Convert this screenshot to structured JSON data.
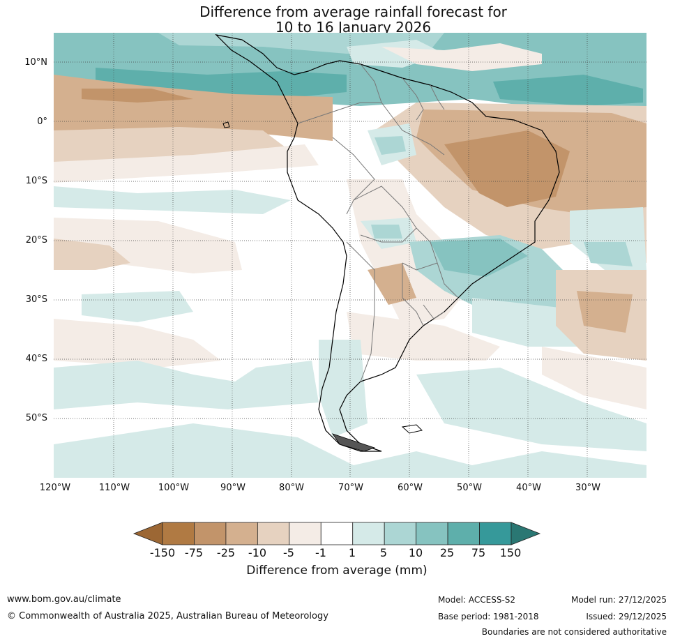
{
  "title_line1": "Difference from average rainfall forecast for",
  "title_line2": "10 to 16 January 2026",
  "axes": {
    "lat_labels": [
      "10°N",
      "0°",
      "10°S",
      "20°S",
      "30°S",
      "40°S",
      "50°S"
    ],
    "lon_labels": [
      "120°W",
      "110°W",
      "100°W",
      "90°W",
      "80°W",
      "70°W",
      "60°W",
      "50°W",
      "40°W",
      "30°W"
    ]
  },
  "colorbar": {
    "tick_labels": [
      "-150",
      "-75",
      "-25",
      "-10",
      "-5",
      "-1",
      "1",
      "5",
      "10",
      "25",
      "75",
      "150"
    ],
    "colors": [
      "#9c6734",
      "#b07a43",
      "#c2946a",
      "#d4b08f",
      "#e6d2c0",
      "#f4ece6",
      "#ffffff",
      "#d5eae8",
      "#acd6d4",
      "#86c3c0",
      "#5eafab",
      "#36999a",
      "#2a7773"
    ],
    "label": "Difference from average (mm)"
  },
  "footer": {
    "website": "www.bom.gov.au/climate",
    "copyright": "© Commonwealth of Australia 2025, Australian Bureau of Meteorology",
    "model": "Model: ACCESS-S2",
    "base_period": "Base period: 1981-2018",
    "model_run": "Model run: 27/12/2025",
    "issued": "Issued: 29/12/2025",
    "boundaries_note": "Boundaries are not considered authoritative"
  }
}
